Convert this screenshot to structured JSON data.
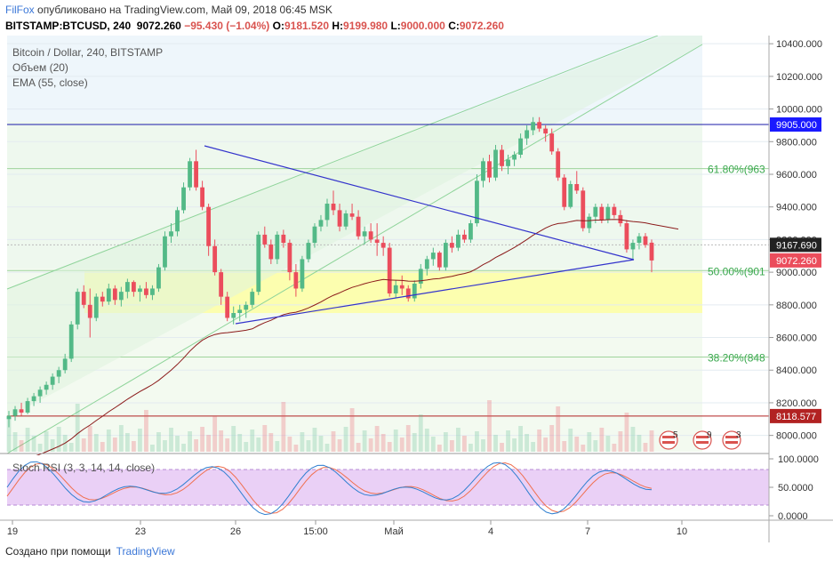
{
  "header": {
    "brand": "FilFox",
    "published": "опубликовано на TradingView.com, Май 09, 2018 06:45 MSK",
    "symbol": "BITSTAMP:BTCUSD, 240",
    "last": "9072.260",
    "change": "−95.430 (−1.04%)",
    "o_label": "O:",
    "o": "9181.520",
    "h_label": "H:",
    "h": "9199.980",
    "l_label": "L:",
    "l": "9000.000",
    "c_label": "C:",
    "c": "9072.260"
  },
  "legend": {
    "title": "Bitcoin / Dollar, 240, BITSTAMP",
    "volume": "Объем (20)",
    "ema": "EMA (55, close)",
    "stoch": "Stoch RSI (3, 3, 14, 14, close)"
  },
  "colors": {
    "up": "#53b987",
    "down": "#eb4d5c",
    "ema": "#8b1a1a",
    "triangle": "#3333cc",
    "channel": "#7fcf8f",
    "zone": "#ffff99",
    "stoch_band": "#e6c8f5",
    "stoch_k": "#2f7fd0",
    "stoch_d": "#f07050"
  },
  "chart_data": {
    "type": "candlestick",
    "price_axis": {
      "min": 7900,
      "max": 10450,
      "ticks": [
        "10400.000",
        "10200.000",
        "10000.000",
        "9800.000",
        "9600.000",
        "9400.000",
        "9200.000",
        "9000.000",
        "8800.000",
        "8600.000",
        "8400.000",
        "8200.000",
        "8000.000"
      ]
    },
    "price_labels": [
      {
        "value": 9905,
        "text": "9905.000",
        "color": "#1a1aff"
      },
      {
        "value": 9167.69,
        "text": "9167.690",
        "color": "#222222"
      },
      {
        "value": 9072.26,
        "text": "9072.260",
        "color": "#eb4d5c"
      },
      {
        "value": 8118.577,
        "text": "8118.577",
        "color": "#b22222"
      }
    ],
    "fib_levels": [
      {
        "value": 9635,
        "text": "61.80%(963"
      },
      {
        "value": 9010,
        "text": "50.00%(901"
      },
      {
        "value": 8480,
        "text": "38.20%(848"
      }
    ],
    "stoch_axis": {
      "ticks": [
        "100.0000",
        "50.0000",
        "0.0000"
      ]
    },
    "x_labels": [
      "19",
      "23",
      "26",
      "15:00",
      "Май",
      "4",
      "7",
      "10"
    ],
    "events": [
      "5",
      "9",
      "3"
    ],
    "candles": [
      [
        8100,
        8150,
        8050,
        8120
      ],
      [
        8120,
        8180,
        8090,
        8160
      ],
      [
        8160,
        8200,
        8120,
        8140
      ],
      [
        8140,
        8230,
        8130,
        8210
      ],
      [
        8210,
        8260,
        8180,
        8240
      ],
      [
        8240,
        8300,
        8200,
        8280
      ],
      [
        8280,
        8330,
        8250,
        8310
      ],
      [
        8310,
        8380,
        8280,
        8360
      ],
      [
        8360,
        8420,
        8320,
        8400
      ],
      [
        8400,
        8500,
        8380,
        8470
      ],
      [
        8470,
        8700,
        8450,
        8680
      ],
      [
        8680,
        8900,
        8650,
        8880
      ],
      [
        8880,
        8920,
        8780,
        8800
      ],
      [
        8800,
        8900,
        8600,
        8720
      ],
      [
        8720,
        8870,
        8700,
        8850
      ],
      [
        8850,
        8880,
        8790,
        8820
      ],
      [
        8820,
        8930,
        8800,
        8900
      ],
      [
        8900,
        8920,
        8800,
        8830
      ],
      [
        8830,
        8910,
        8790,
        8880
      ],
      [
        8880,
        8960,
        8840,
        8940
      ],
      [
        8940,
        8950,
        8850,
        8880
      ],
      [
        8880,
        8920,
        8820,
        8900
      ],
      [
        8900,
        8940,
        8840,
        8860
      ],
      [
        8860,
        8920,
        8830,
        8900
      ],
      [
        8900,
        9050,
        8880,
        9030
      ],
      [
        9030,
        9250,
        9010,
        9220
      ],
      [
        9220,
        9300,
        9180,
        9250
      ],
      [
        9250,
        9400,
        9220,
        9380
      ],
      [
        9380,
        9550,
        9360,
        9520
      ],
      [
        9520,
        9700,
        9500,
        9680
      ],
      [
        9680,
        9750,
        9500,
        9520
      ],
      [
        9520,
        9560,
        9380,
        9400
      ],
      [
        9400,
        9420,
        9100,
        9160
      ],
      [
        9160,
        9200,
        8980,
        9000
      ],
      [
        9000,
        9020,
        8800,
        8850
      ],
      [
        8850,
        8880,
        8700,
        8720
      ],
      [
        8720,
        8790,
        8680,
        8750
      ],
      [
        8750,
        8800,
        8700,
        8770
      ],
      [
        8770,
        8820,
        8720,
        8800
      ],
      [
        8800,
        8900,
        8780,
        8880
      ],
      [
        8880,
        9250,
        8860,
        9230
      ],
      [
        9230,
        9280,
        9150,
        9170
      ],
      [
        9170,
        9200,
        9050,
        9080
      ],
      [
        9080,
        9250,
        9050,
        9230
      ],
      [
        9230,
        9260,
        9150,
        9180
      ],
      [
        9180,
        9200,
        8950,
        9000
      ],
      [
        9000,
        9050,
        8850,
        8900
      ],
      [
        8900,
        9100,
        8880,
        9080
      ],
      [
        9080,
        9200,
        9060,
        9180
      ],
      [
        9180,
        9300,
        9150,
        9280
      ],
      [
        9280,
        9350,
        9250,
        9320
      ],
      [
        9320,
        9450,
        9280,
        9420
      ],
      [
        9420,
        9500,
        9350,
        9380
      ],
      [
        9380,
        9420,
        9250,
        9280
      ],
      [
        9280,
        9380,
        9260,
        9360
      ],
      [
        9360,
        9420,
        9320,
        9340
      ],
      [
        9340,
        9380,
        9200,
        9220
      ],
      [
        9220,
        9280,
        9170,
        9250
      ],
      [
        9250,
        9300,
        9180,
        9200
      ],
      [
        9200,
        9300,
        9100,
        9180
      ],
      [
        9180,
        9220,
        9100,
        9150
      ],
      [
        9150,
        9180,
        8850,
        8870
      ],
      [
        8870,
        8950,
        8840,
        8920
      ],
      [
        8920,
        8980,
        8860,
        8900
      ],
      [
        8900,
        8920,
        8820,
        8840
      ],
      [
        8840,
        8950,
        8820,
        8930
      ],
      [
        8930,
        9050,
        8900,
        9020
      ],
      [
        9020,
        9100,
        8980,
        9080
      ],
      [
        9080,
        9150,
        9040,
        9120
      ],
      [
        9120,
        9130,
        9010,
        9030
      ],
      [
        9030,
        9200,
        9010,
        9180
      ],
      [
        9180,
        9220,
        9120,
        9150
      ],
      [
        9150,
        9260,
        9130,
        9230
      ],
      [
        9230,
        9260,
        9180,
        9200
      ],
      [
        9200,
        9320,
        9180,
        9300
      ],
      [
        9300,
        9600,
        9280,
        9560
      ],
      [
        9560,
        9700,
        9520,
        9680
      ],
      [
        9680,
        9720,
        9550,
        9580
      ],
      [
        9580,
        9780,
        9560,
        9750
      ],
      [
        9750,
        9780,
        9620,
        9650
      ],
      [
        9650,
        9720,
        9600,
        9690
      ],
      [
        9690,
        9740,
        9650,
        9720
      ],
      [
        9720,
        9850,
        9700,
        9820
      ],
      [
        9820,
        9900,
        9780,
        9870
      ],
      [
        9870,
        9950,
        9840,
        9920
      ],
      [
        9920,
        9950,
        9860,
        9880
      ],
      [
        9880,
        9900,
        9800,
        9850
      ],
      [
        9850,
        9880,
        9720,
        9740
      ],
      [
        9740,
        9760,
        9560,
        9580
      ],
      [
        9580,
        9600,
        9380,
        9400
      ],
      [
        9400,
        9560,
        9390,
        9540
      ],
      [
        9540,
        9620,
        9480,
        9500
      ],
      [
        9500,
        9520,
        9250,
        9270
      ],
      [
        9270,
        9360,
        9240,
        9340
      ],
      [
        9340,
        9420,
        9300,
        9400
      ],
      [
        9400,
        9420,
        9300,
        9320
      ],
      [
        9320,
        9420,
        9300,
        9400
      ],
      [
        9400,
        9420,
        9330,
        9350
      ],
      [
        9350,
        9380,
        9280,
        9300
      ],
      [
        9300,
        9320,
        9120,
        9140
      ],
      [
        9140,
        9200,
        9080,
        9180
      ],
      [
        9180,
        9240,
        9140,
        9220
      ],
      [
        9220,
        9240,
        9150,
        9167
      ],
      [
        9181,
        9200,
        9000,
        9072
      ]
    ]
  }
}
